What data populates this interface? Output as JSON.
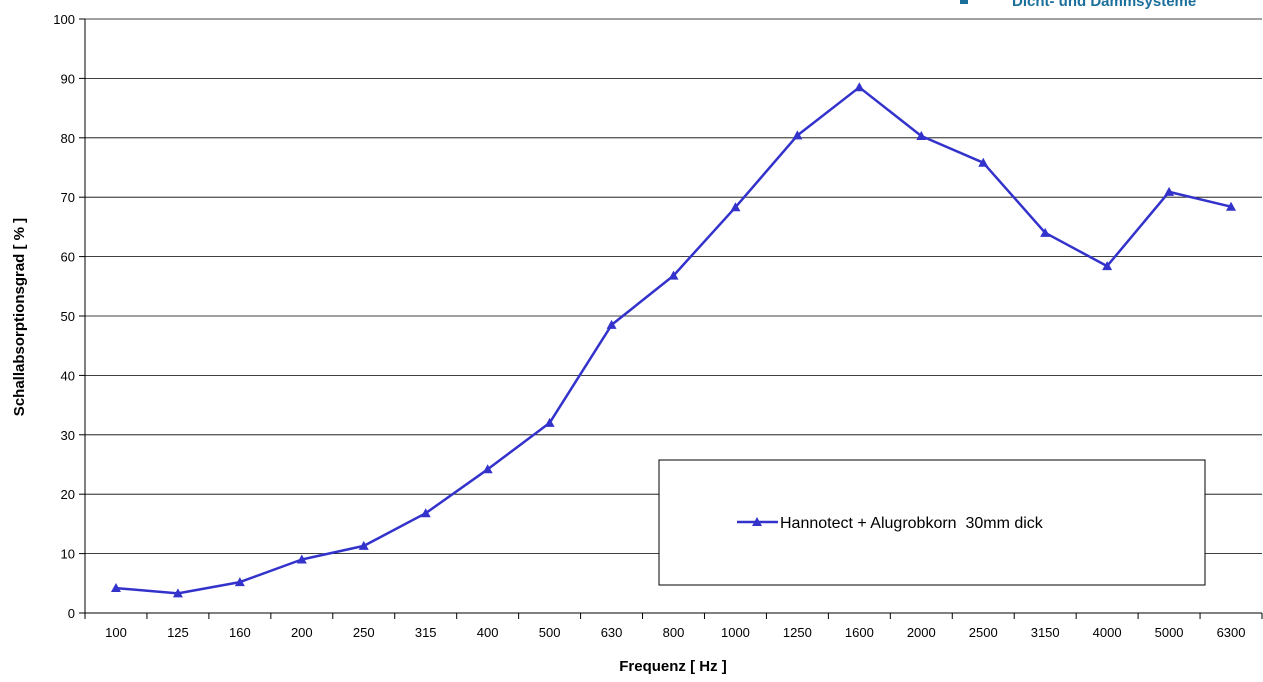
{
  "brand": {
    "text": "Dicht- und Dämmsysteme",
    "color": "#1b6f9b"
  },
  "chart_data": {
    "type": "line",
    "title": "",
    "xlabel": "Frequenz [ Hz ]",
    "ylabel": "Schallabsorptionsgrad [ % ]",
    "ylim": [
      0,
      100
    ],
    "yticks": [
      0,
      10,
      20,
      30,
      40,
      50,
      60,
      70,
      80,
      90,
      100
    ],
    "categories": [
      "100",
      "125",
      "160",
      "200",
      "250",
      "315",
      "400",
      "500",
      "630",
      "800",
      "1000",
      "1250",
      "1600",
      "2000",
      "2500",
      "3150",
      "4000",
      "5000",
      "6300"
    ],
    "series": [
      {
        "name": "Hannotect + Alugrobkorn  30mm dick",
        "color": "#3333cc",
        "marker": "triangle",
        "values": [
          4.2,
          3.3,
          5.2,
          9.0,
          11.3,
          16.8,
          24.2,
          32.0,
          48.5,
          56.8,
          68.3,
          80.4,
          88.5,
          80.3,
          75.8,
          64.0,
          58.4,
          70.9,
          68.4
        ]
      }
    ],
    "grid": true,
    "legend": "bottom-right"
  }
}
